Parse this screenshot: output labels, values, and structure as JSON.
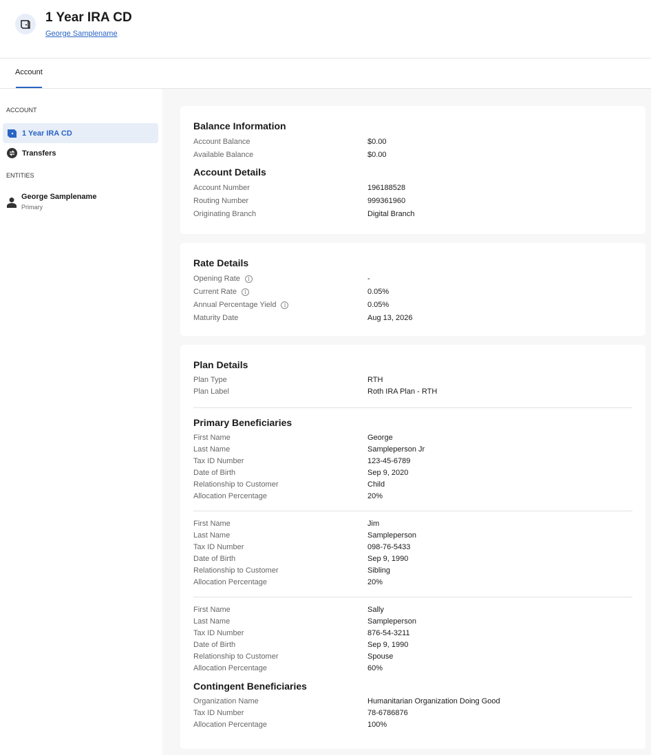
{
  "header": {
    "title": "1 Year IRA CD",
    "owner_link": "George Samplename",
    "icon": "cd-account-icon"
  },
  "tabs": [
    {
      "label": "Account",
      "active": true
    }
  ],
  "sidebar": {
    "account_heading": "ACCOUNT",
    "items": [
      {
        "label": "1 Year IRA CD",
        "icon": "cd-account-icon",
        "active": true
      },
      {
        "label": "Transfers",
        "icon": "transfer-icon"
      }
    ],
    "entities_heading": "ENTITIES",
    "entities": [
      {
        "name": "George Samplename",
        "role": "Primary",
        "icon": "person-icon"
      }
    ]
  },
  "balance": {
    "title": "Balance Information",
    "rows": [
      {
        "label": "Account Balance",
        "value": "$0.00"
      },
      {
        "label": "Available Balance",
        "value": "$0.00"
      }
    ]
  },
  "account_details": {
    "title": "Account Details",
    "rows": [
      {
        "label": "Account Number",
        "value": "196188528"
      },
      {
        "label": "Routing Number",
        "value": "999361960"
      },
      {
        "label": "Originating Branch",
        "value": "Digital Branch"
      }
    ]
  },
  "rate": {
    "title": "Rate Details",
    "rows": [
      {
        "label": "Opening Rate",
        "value": "-",
        "info": true
      },
      {
        "label": "Current Rate",
        "value": "0.05%",
        "info": true
      },
      {
        "label": "Annual Percentage Yield",
        "value": "0.05%",
        "info": true
      },
      {
        "label": "Maturity Date",
        "value": "Aug 13, 2026"
      }
    ]
  },
  "plan": {
    "title": "Plan Details",
    "rows": [
      {
        "label": "Plan Type",
        "value": "RTH"
      },
      {
        "label": "Plan Label",
        "value": "Roth IRA Plan - RTH"
      }
    ]
  },
  "primary_beneficiaries": {
    "title": "Primary Beneficiaries",
    "entries": [
      [
        {
          "label": "First Name",
          "value": "George"
        },
        {
          "label": "Last Name",
          "value": "Sampleperson Jr"
        },
        {
          "label": "Tax ID Number",
          "value": "123-45-6789"
        },
        {
          "label": "Date of Birth",
          "value": "Sep 9, 2020"
        },
        {
          "label": "Relationship to Customer",
          "value": "Child"
        },
        {
          "label": "Allocation Percentage",
          "value": "20%"
        }
      ],
      [
        {
          "label": "First Name",
          "value": "Jim"
        },
        {
          "label": "Last Name",
          "value": "Sampleperson"
        },
        {
          "label": "Tax ID Number",
          "value": "098-76-5433"
        },
        {
          "label": "Date of Birth",
          "value": "Sep 9, 1990"
        },
        {
          "label": "Relationship to Customer",
          "value": "Sibling"
        },
        {
          "label": "Allocation Percentage",
          "value": "20%"
        }
      ],
      [
        {
          "label": "First Name",
          "value": "Sally"
        },
        {
          "label": "Last Name",
          "value": "Sampleperson"
        },
        {
          "label": "Tax ID Number",
          "value": "876-54-3211"
        },
        {
          "label": "Date of Birth",
          "value": "Sep 9, 1990"
        },
        {
          "label": "Relationship to Customer",
          "value": "Spouse"
        },
        {
          "label": "Allocation Percentage",
          "value": "60%"
        }
      ]
    ]
  },
  "contingent_beneficiaries": {
    "title": "Contingent Beneficiaries",
    "rows": [
      {
        "label": "Organization Name",
        "value": "Humanitarian Organization Doing Good"
      },
      {
        "label": "Tax ID Number",
        "value": "78-6786876"
      },
      {
        "label": "Allocation Percentage",
        "value": "100%"
      }
    ]
  },
  "colors": {
    "accent": "#2a64c4",
    "background": "#f7f7f7"
  }
}
